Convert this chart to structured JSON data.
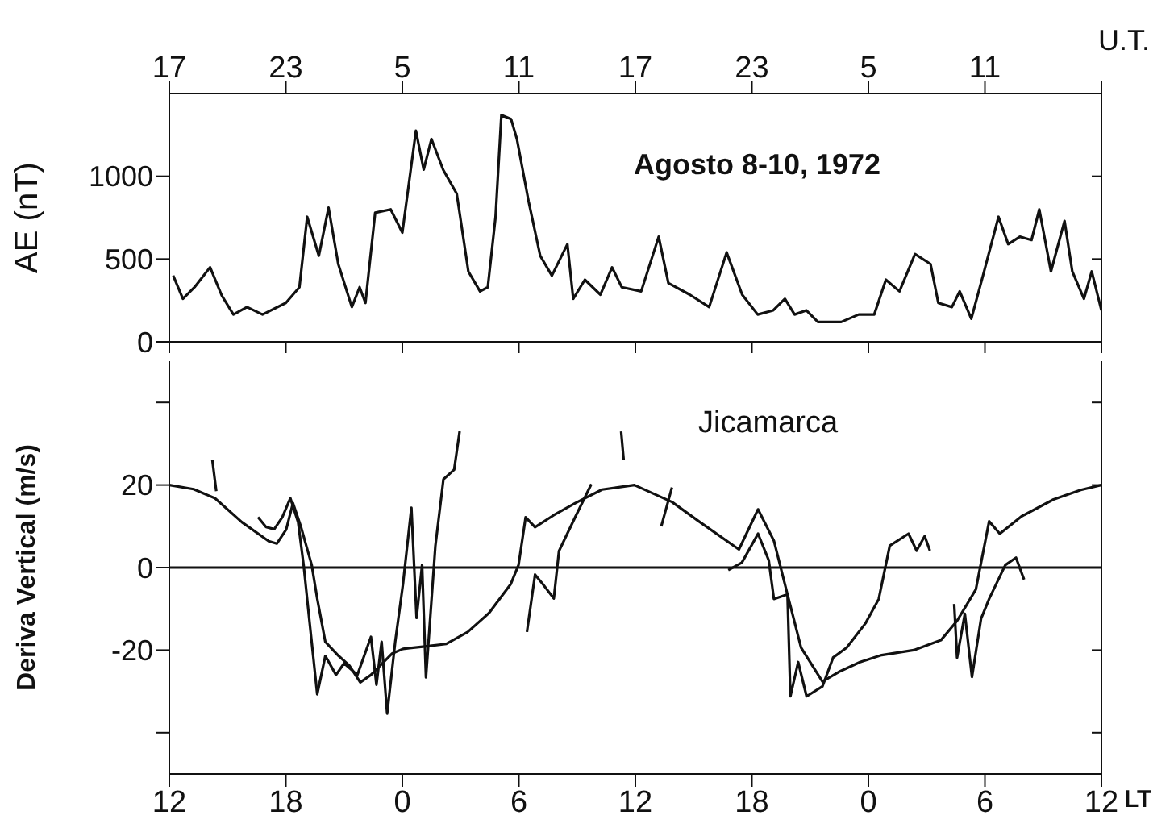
{
  "chart_data": [
    {
      "type": "line",
      "ylabel": "AE (nT)",
      "xlabel": "U.T.",
      "annotations": [
        "Agosto 8-10, 1972"
      ],
      "xlim": [
        "1972-08-08T17:00",
        "1972-08-10T17:00"
      ],
      "xticks": [
        {
          "value": "1972-08-08T17:00",
          "label": "17"
        },
        {
          "value": "1972-08-08T23:00",
          "label": "23"
        },
        {
          "value": "1972-08-09T05:00",
          "label": "5"
        },
        {
          "value": "1972-08-09T11:00",
          "label": "11"
        },
        {
          "value": "1972-08-09T17:00",
          "label": "17"
        },
        {
          "value": "1972-08-09T23:00",
          "label": "23"
        },
        {
          "value": "1972-08-10T05:00",
          "label": "5"
        },
        {
          "value": "1972-08-10T11:00",
          "label": "11"
        },
        {
          "value": "1972-08-10T17:00",
          "label": null
        }
      ],
      "ylim": [
        0,
        1500
      ],
      "yticks": [
        0,
        500,
        1000
      ],
      "series": [
        {
          "color": "#111111",
          "x": [
            "1972-08-08T17:12",
            "1972-08-08T17:42",
            "1972-08-08T18:18",
            "1972-08-08T19:06",
            "1972-08-08T19:42",
            "1972-08-08T20:18",
            "1972-08-08T21:00",
            "1972-08-08T21:48",
            "1972-08-08T23:00",
            "1972-08-08T23:42",
            "1972-08-09T00:06",
            "1972-08-09T00:42",
            "1972-08-09T01:12",
            "1972-08-09T01:42",
            "1972-08-09T02:24",
            "1972-08-09T02:48",
            "1972-08-09T03:06",
            "1972-08-09T03:36",
            "1972-08-09T04:24",
            "1972-08-09T05:00",
            "1972-08-09T05:42",
            "1972-08-09T06:06",
            "1972-08-09T06:30",
            "1972-08-09T07:06",
            "1972-08-09T07:48",
            "1972-08-09T08:24",
            "1972-08-09T09:00",
            "1972-08-09T09:24",
            "1972-08-09T09:48",
            "1972-08-09T10:06",
            "1972-08-09T10:36",
            "1972-08-09T10:54",
            "1972-08-09T11:30",
            "1972-08-09T12:06",
            "1972-08-09T12:42",
            "1972-08-09T13:30",
            "1972-08-09T13:48",
            "1972-08-09T14:24",
            "1972-08-09T15:12",
            "1972-08-09T15:48",
            "1972-08-09T16:18",
            "1972-08-09T17:18",
            "1972-08-09T18:12",
            "1972-08-09T18:42",
            "1972-08-09T19:48",
            "1972-08-09T20:48",
            "1972-08-09T21:42",
            "1972-08-09T22:30",
            "1972-08-09T23:18",
            "1972-08-10T00:06",
            "1972-08-10T00:42",
            "1972-08-10T01:12",
            "1972-08-10T01:48",
            "1972-08-10T02:24",
            "1972-08-10T03:36",
            "1972-08-10T04:30",
            "1972-08-10T05:18",
            "1972-08-10T05:54",
            "1972-08-10T06:36",
            "1972-08-10T07:24",
            "1972-08-10T08:12",
            "1972-08-10T08:36",
            "1972-08-10T09:18",
            "1972-08-10T09:42",
            "1972-08-10T10:18",
            "1972-08-10T10:54",
            "1972-08-10T11:42",
            "1972-08-10T12:12",
            "1972-08-10T12:48",
            "1972-08-10T13:24",
            "1972-08-10T13:48",
            "1972-08-10T14:24",
            "1972-08-10T15:06",
            "1972-08-10T15:30",
            "1972-08-10T16:06",
            "1972-08-10T16:30",
            "1972-08-10T17:00"
          ],
          "values": [
            400,
            260,
            330,
            450,
            280,
            165,
            210,
            165,
            235,
            330,
            755,
            520,
            810,
            470,
            210,
            330,
            235,
            780,
            800,
            660,
            1275,
            1040,
            1225,
            1040,
            895,
            425,
            305,
            330,
            755,
            1370,
            1345,
            1225,
            850,
            520,
            400,
            590,
            260,
            375,
            285,
            450,
            330,
            305,
            635,
            355,
            285,
            210,
            540,
            285,
            165,
            190,
            260,
            165,
            190,
            120,
            120,
            165,
            165,
            375,
            305,
            530,
            470,
            235,
            210,
            305,
            140,
            400,
            755,
            590,
            635,
            615,
            800,
            425,
            730,
            425,
            260,
            425,
            190
          ]
        }
      ]
    },
    {
      "type": "line",
      "ylabel": "Deriva Vertical (m/s)",
      "xlabel": "LT",
      "annotations": [
        "Jicamarca"
      ],
      "xlim": [
        "1972-08-08T12:00",
        "1972-08-10T12:00"
      ],
      "xticks": [
        {
          "value": "1972-08-08T12:00",
          "label": "12"
        },
        {
          "value": "1972-08-08T18:00",
          "label": "18"
        },
        {
          "value": "1972-08-09T00:00",
          "label": "0"
        },
        {
          "value": "1972-08-09T06:00",
          "label": "6"
        },
        {
          "value": "1972-08-09T12:00",
          "label": "12"
        },
        {
          "value": "1972-08-09T18:00",
          "label": "18"
        },
        {
          "value": "1972-08-10T00:00",
          "label": "0"
        },
        {
          "value": "1972-08-10T06:00",
          "label": "6"
        },
        {
          "value": "1972-08-10T12:00",
          "label": "12"
        }
      ],
      "ylim": [
        -50,
        50
      ],
      "yticks": [
        {
          "value": -40,
          "label": null
        },
        -20,
        0,
        20,
        {
          "value": 40,
          "label": null
        }
      ],
      "ref_lines": [
        {
          "axis": "y",
          "value": 0,
          "color": "#111111"
        }
      ],
      "series": [
        {
          "color": "#111111",
          "x": [
            "1972-08-08T12:00",
            "1972-08-08T13:15",
            "1972-08-08T14:21",
            "1972-08-08T15:44",
            "1972-08-08T17:07",
            "1972-08-08T17:32",
            "1972-08-08T18:01",
            "1972-08-08T18:22",
            "1972-08-08T18:47",
            "1972-08-08T19:20",
            "1972-08-08T19:37",
            "1972-08-08T20:02",
            "1972-08-08T20:43",
            "1972-08-08T21:16",
            "1972-08-08T21:50",
            "1972-08-08T22:23",
            "1972-08-08T23:29",
            "1972-08-09T00:02",
            "1972-08-09T01:09",
            "1972-08-09T02:16",
            "1972-08-09T03:22",
            "1972-08-09T04:28",
            "1972-08-09T05:35",
            "1972-08-09T05:59",
            "1972-08-09T06:21",
            "1972-08-09T06:50",
            "1972-08-09T07:48",
            "1972-08-09T08:54",
            "1972-08-09T10:17",
            "1972-08-09T11:57",
            "1972-08-09T13:53",
            "1972-08-09T15:16",
            "1972-08-09T17:20",
            "1972-08-09T18:19",
            "1972-08-09T19:08",
            "1972-08-09T19:50",
            "1972-08-09T20:32",
            "1972-08-09T21:38",
            "1972-08-09T22:28",
            "1972-08-09T23:34",
            "1972-08-10T00:41",
            "1972-08-10T02:20",
            "1972-08-10T03:44",
            "1972-08-10T04:34",
            "1972-08-10T05:32",
            "1972-08-10T06:13",
            "1972-08-10T06:46",
            "1972-08-10T07:53",
            "1972-08-10T09:32",
            "1972-08-10T10:56",
            "1972-08-10T12:00"
          ],
          "values": [
            20,
            19,
            16.8,
            11,
            6.4,
            5.8,
            9.2,
            15.6,
            9.8,
            0.6,
            -7.5,
            -18,
            -21.4,
            -23.7,
            -27.8,
            -26,
            -20.8,
            -19.7,
            -19.1,
            -18.5,
            -15.6,
            -11,
            -4,
            0.6,
            12.2,
            9.8,
            12.7,
            15.6,
            18.9,
            20,
            15.9,
            11.2,
            4.4,
            14.1,
            6.5,
            -6.5,
            -19.4,
            -27.6,
            -25.3,
            -22.9,
            -21.2,
            -20,
            -17.6,
            -12.9,
            -5.3,
            11.2,
            8.2,
            12.4,
            16.5,
            18.8,
            20
          ]
        },
        {
          "color": "#111111",
          "x": [
            "1972-08-08T14:13",
            "1972-08-08T14:25",
            "1972-08-08T14:30",
            "1972-08-08T16:34",
            "1972-08-08T16:59",
            "1972-08-08T17:24",
            "1972-08-08T17:49",
            "1972-08-08T18:14",
            "1972-08-08T18:38",
            "1972-08-08T18:55",
            "1972-08-08T19:12",
            "1972-08-08T19:37",
            "1972-08-08T20:02",
            "1972-08-08T20:35",
            "1972-08-08T21:00",
            "1972-08-08T21:41",
            "1972-08-08T22:23",
            "1972-08-08T22:40",
            "1972-08-08T22:56",
            "1972-08-08T23:13",
            "1972-08-08T23:38",
            "1972-08-09T00:02",
            "1972-08-09T00:28",
            "1972-08-09T00:44",
            "1972-08-09T01:01",
            "1972-08-09T01:13",
            "1972-08-09T01:42",
            "1972-08-09T02:07",
            "1972-08-09T02:40",
            "1972-08-09T02:57",
            "1972-08-09T03:00",
            "1972-08-09T06:25",
            "1972-08-09T06:50",
            "1972-08-09T07:14",
            "1972-08-09T07:48",
            "1972-08-09T08:04",
            "1972-08-09T08:54",
            "1972-08-09T09:44",
            "1972-08-09T09:48",
            "1972-08-09T11:16",
            "1972-08-09T11:24",
            "1972-08-09T11:30",
            "1972-08-09T13:20",
            "1972-08-09T13:53",
            "1972-08-09T14:00",
            "1972-08-09T16:47",
            "1972-08-09T17:29",
            "1972-08-09T18:19",
            "1972-08-09T18:52",
            "1972-08-09T19:08",
            "1972-08-09T19:50",
            "1972-08-09T19:59",
            "1972-08-09T20:23",
            "1972-08-09T20:49",
            "1972-08-09T21:38",
            "1972-08-09T22:11",
            "1972-08-09T22:53",
            "1972-08-09T23:51",
            "1972-08-10T00:32",
            "1972-08-10T01:06",
            "1972-08-10T02:04",
            "1972-08-10T02:29",
            "1972-08-10T02:54",
            "1972-08-10T03:10",
            "1972-08-10T03:18",
            "1972-08-10T04:25",
            "1972-08-10T04:34",
            "1972-08-10T04:58",
            "1972-08-10T05:20",
            "1972-08-10T05:48",
            "1972-08-10T06:13",
            "1972-08-10T07:03",
            "1972-08-10T07:36",
            "1972-08-10T08:01"
          ],
          "values": [
            26,
            18.5,
            null,
            12.2,
            9.8,
            9.3,
            12.2,
            16.8,
            11,
            0.6,
            -12.2,
            -30.7,
            -21.4,
            -26,
            -23.2,
            -26,
            -16.8,
            -28.4,
            -18,
            -35.4,
            -18,
            -4,
            14.5,
            -12.2,
            0.6,
            -26.6,
            5.2,
            21.4,
            23.7,
            33,
            null,
            -15.6,
            -1.7,
            -4,
            -7.5,
            4,
            12.2,
            20.2,
            null,
            33,
            26,
            null,
            10,
            19.4,
            null,
            -0.6,
            1.2,
            8.2,
            1.8,
            -7.6,
            -6.5,
            -31.2,
            -22.9,
            -31.2,
            -28.8,
            -21.8,
            -19.4,
            -13.5,
            -7.6,
            5.3,
            8.2,
            4.1,
            7.6,
            4.1,
            null,
            -8.8,
            -21.8,
            -11.2,
            -26.5,
            -12.4,
            -7.6,
            0.6,
            2.4,
            -2.9
          ]
        }
      ]
    }
  ]
}
